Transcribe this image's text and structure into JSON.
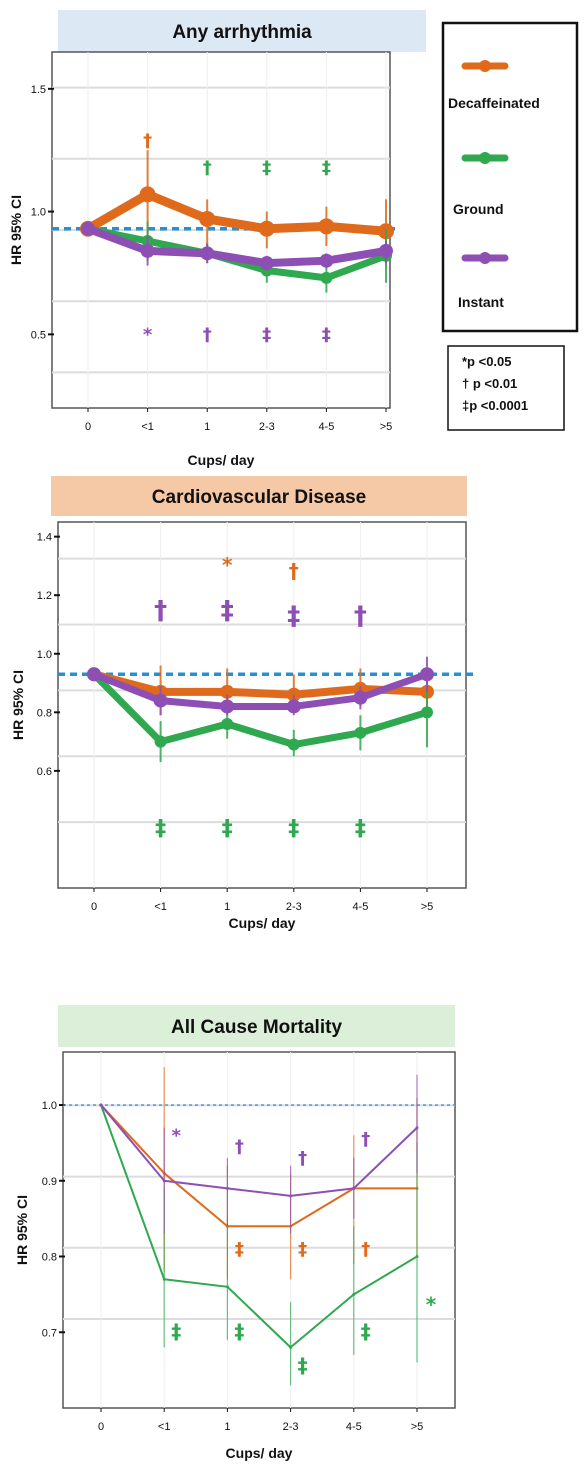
{
  "colors": {
    "decaf": "#e06a1b",
    "ground": "#2fa84f",
    "instant": "#8e4fb5",
    "reference": "#2a8fd0",
    "grid": "#dcdcdc"
  },
  "legend": {
    "items": [
      {
        "label": "Decaffeinated",
        "color": "#e06a1b"
      },
      {
        "label": "Ground",
        "color": "#2fa84f"
      },
      {
        "label": "Instant",
        "color": "#8e4fb5"
      }
    ]
  },
  "pvalue_key": [
    "*p <0.05",
    "† p <0.01",
    "‡p <0.0001"
  ],
  "chart_data": [
    {
      "type": "line",
      "title": "Any arrhythmia",
      "title_bg": "#dce8f4",
      "xlabel": "Cups/ day",
      "ylabel": "HR 95% CI",
      "categories": [
        "0",
        "<1",
        "1",
        "2-3",
        "4-5",
        ">5"
      ],
      "yticks": [
        "1.5",
        "1.0",
        "0.5"
      ],
      "ylim": [
        0.2,
        1.65
      ],
      "reference_line": 0.93,
      "series": [
        {
          "name": "Decaffeinated",
          "values": [
            0.93,
            1.07,
            0.97,
            0.93,
            0.94,
            0.92
          ],
          "ci_low": [
            0.93,
            0.9,
            0.86,
            0.85,
            0.86,
            0.78
          ],
          "ci_high": [
            0.93,
            1.25,
            1.05,
            1.0,
            1.02,
            1.05
          ]
        },
        {
          "name": "Ground",
          "values": [
            0.93,
            0.88,
            0.83,
            0.76,
            0.73,
            0.82
          ],
          "ci_low": [
            0.93,
            0.8,
            0.79,
            0.71,
            0.67,
            0.71
          ],
          "ci_high": [
            0.93,
            0.96,
            0.87,
            0.81,
            0.79,
            0.93
          ]
        },
        {
          "name": "Instant",
          "values": [
            0.93,
            0.84,
            0.83,
            0.79,
            0.8,
            0.84
          ],
          "ci_low": [
            0.93,
            0.78,
            0.79,
            0.76,
            0.77,
            0.79
          ],
          "ci_high": [
            0.93,
            0.9,
            0.87,
            0.82,
            0.83,
            0.88
          ]
        }
      ],
      "significance": [
        {
          "series": "Decaffeinated",
          "category": "<1",
          "symbol": "†",
          "level": 1.29
        },
        {
          "series": "Ground",
          "category": "1",
          "symbol": "†",
          "level": 1.18
        },
        {
          "series": "Ground",
          "category": "2-3",
          "symbol": "‡",
          "level": 1.18
        },
        {
          "series": "Ground",
          "category": "4-5",
          "symbol": "‡",
          "level": 1.18
        },
        {
          "series": "Instant",
          "category": "<1",
          "symbol": "*",
          "level": 0.5
        },
        {
          "series": "Instant",
          "category": "1",
          "symbol": "†",
          "level": 0.5
        },
        {
          "series": "Instant",
          "category": "2-3",
          "symbol": "‡",
          "level": 0.5
        },
        {
          "series": "Instant",
          "category": "4-5",
          "symbol": "‡",
          "level": 0.5
        }
      ]
    },
    {
      "type": "line",
      "title": "Cardiovascular Disease",
      "title_bg": "#f6c9a6",
      "xlabel": "Cups/ day",
      "ylabel": "HR 95% CI",
      "categories": [
        "0",
        "<1",
        "1",
        "2-3",
        "4-5",
        ">5"
      ],
      "yticks": [
        "1.4",
        "1.2",
        "1.0",
        "0.8",
        "0.6"
      ],
      "ylim": [
        0.2,
        1.45
      ],
      "reference_line": 0.93,
      "series": [
        {
          "name": "Decaffeinated",
          "values": [
            0.93,
            0.87,
            0.87,
            0.86,
            0.88,
            0.87
          ],
          "ci_low": [
            0.93,
            0.79,
            0.8,
            0.8,
            0.82,
            0.8
          ],
          "ci_high": [
            0.93,
            0.96,
            0.95,
            0.93,
            0.95,
            0.95
          ]
        },
        {
          "name": "Ground",
          "values": [
            0.93,
            0.7,
            0.76,
            0.69,
            0.73,
            0.8
          ],
          "ci_low": [
            0.93,
            0.63,
            0.71,
            0.65,
            0.67,
            0.68
          ],
          "ci_high": [
            0.93,
            0.77,
            0.81,
            0.74,
            0.79,
            0.92
          ]
        },
        {
          "name": "Instant",
          "values": [
            0.93,
            0.84,
            0.82,
            0.82,
            0.85,
            0.93
          ],
          "ci_low": [
            0.93,
            0.79,
            0.79,
            0.79,
            0.81,
            0.87
          ],
          "ci_high": [
            0.93,
            0.89,
            0.86,
            0.86,
            0.89,
            0.99
          ]
        }
      ],
      "significance": [
        {
          "series": "Decaffeinated",
          "category": "1",
          "symbol": "*",
          "level": 1.3
        },
        {
          "series": "Decaffeinated",
          "category": "2-3",
          "symbol": "†",
          "level": 1.28
        },
        {
          "series": "Instant",
          "category": "<1",
          "symbol": "†",
          "level": 1.14
        },
        {
          "series": "Instant",
          "category": "1",
          "symbol": "‡",
          "level": 1.14
        },
        {
          "series": "Instant",
          "category": "2-3",
          "symbol": "‡",
          "level": 1.12
        },
        {
          "series": "Instant",
          "category": "4-5",
          "symbol": "†",
          "level": 1.12
        },
        {
          "series": "Ground",
          "category": "<1",
          "symbol": "‡",
          "level": 0.4
        },
        {
          "series": "Ground",
          "category": "1",
          "symbol": "‡",
          "level": 0.4
        },
        {
          "series": "Ground",
          "category": "2-3",
          "symbol": "‡",
          "level": 0.4
        },
        {
          "series": "Ground",
          "category": "4-5",
          "symbol": "‡",
          "level": 0.4
        }
      ]
    },
    {
      "type": "line",
      "title": "All Cause Mortality",
      "title_bg": "#dcefd8",
      "xlabel": "Cups/ day",
      "ylabel": "HR 95% CI",
      "categories": [
        "0",
        "<1",
        "1",
        "2-3",
        "4-5",
        ">5"
      ],
      "yticks": [
        "1.0",
        "0.9",
        "0.8",
        "0.7"
      ],
      "ylim": [
        0.6,
        1.07
      ],
      "reference_line": 1.0,
      "series": [
        {
          "name": "Decaffeinated",
          "values": [
            1.0,
            0.91,
            0.84,
            0.84,
            0.89,
            0.89
          ],
          "ci_low": [
            1.0,
            0.78,
            0.77,
            0.77,
            0.79,
            0.8
          ],
          "ci_high": [
            1.0,
            1.05,
            0.92,
            0.91,
            0.96,
            1.01
          ]
        },
        {
          "name": "Ground",
          "values": [
            1.0,
            0.77,
            0.76,
            0.68,
            0.75,
            0.8
          ],
          "ci_low": [
            1.0,
            0.68,
            0.69,
            0.63,
            0.67,
            0.66
          ],
          "ci_high": [
            1.0,
            0.89,
            0.85,
            0.74,
            0.84,
            0.95
          ]
        },
        {
          "name": "Instant",
          "values": [
            1.0,
            0.9,
            0.89,
            0.88,
            0.89,
            0.97
          ],
          "ci_low": [
            1.0,
            0.83,
            0.84,
            0.83,
            0.85,
            0.91
          ],
          "ci_high": [
            1.0,
            0.97,
            0.93,
            0.92,
            0.93,
            1.04
          ]
        }
      ],
      "significance": [
        {
          "series": "Instant",
          "category": "<1",
          "symbol": "*",
          "level": 0.96
        },
        {
          "series": "Instant",
          "category": "1",
          "symbol": "†",
          "level": 0.945
        },
        {
          "series": "Instant",
          "category": "2-3",
          "symbol": "†",
          "level": 0.93
        },
        {
          "series": "Instant",
          "category": "4-5",
          "symbol": "†",
          "level": 0.955
        },
        {
          "series": "Decaffeinated",
          "category": "1",
          "symbol": "‡",
          "level": 0.81
        },
        {
          "series": "Decaffeinated",
          "category": "2-3",
          "symbol": "‡",
          "level": 0.81
        },
        {
          "series": "Decaffeinated",
          "category": "4-5",
          "symbol": "†",
          "level": 0.81
        },
        {
          "series": "Ground",
          "category": "<1",
          "symbol": "‡",
          "level": 0.7
        },
        {
          "series": "Ground",
          "category": "1",
          "symbol": "‡",
          "level": 0.7
        },
        {
          "series": "Ground",
          "category": "2-3",
          "symbol": "‡",
          "level": 0.655
        },
        {
          "series": "Ground",
          "category": "4-5",
          "symbol": "‡",
          "level": 0.7
        },
        {
          "series": "Ground",
          "category": ">5",
          "symbol": "*",
          "level": 0.735
        }
      ]
    }
  ]
}
